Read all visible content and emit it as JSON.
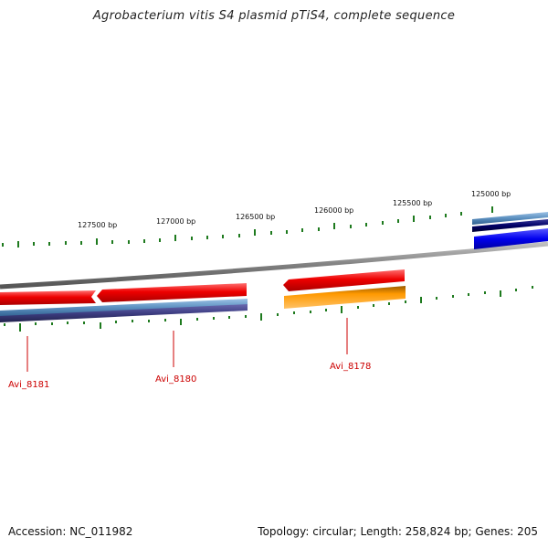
{
  "title": "Agrobacterium vitis S4 plasmid pTiS4, complete sequence",
  "accession": "Accession: NC_011982",
  "summary": "Topology: circular; Length: 258,824 bp; Genes: 205",
  "scale_labels": [
    "127500 bp",
    "127000 bp",
    "126500 bp",
    "126000 bp",
    "125500 bp",
    "125000 bp"
  ],
  "gene_labels": [
    "Avi_8181",
    "Avi_8180",
    "Avi_8178"
  ],
  "colors": {
    "backbone": "#7f7f7f",
    "tick": "#1e7a1e",
    "gene_red": "#ee0000",
    "gene_orange": "#ff9900",
    "steelblue": "#5b8fbf",
    "slateblue": "#3d3d82",
    "blue": "#0000ee",
    "navy": "#000066",
    "label_red": "#cc0000"
  }
}
